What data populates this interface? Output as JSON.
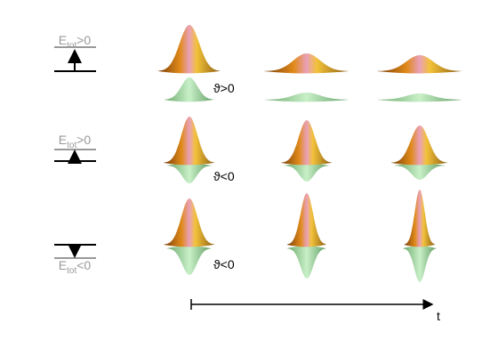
{
  "rows": [
    {
      "energy": {
        "main": "E",
        "sub": "tot",
        "rest": ">0"
      },
      "theta": "ϑ>0"
    },
    {
      "energy": {
        "main": "E",
        "sub": "tot",
        "rest": ">0"
      },
      "theta": "ϑ<0"
    },
    {
      "energy": {
        "main": "E",
        "sub": "tot",
        "rest": "<0"
      },
      "theta": "ϑ<0"
    }
  ],
  "time_axis": {
    "label": "t"
  }
}
